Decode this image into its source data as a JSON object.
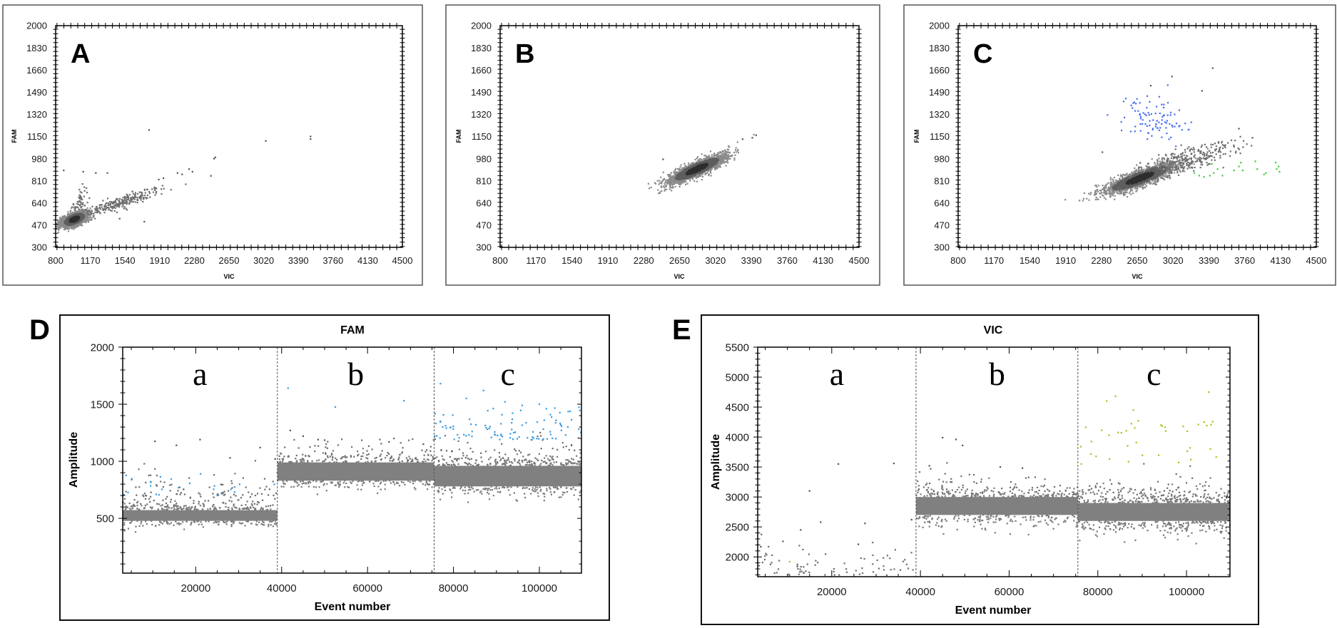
{
  "colors": {
    "gray": "#808080",
    "dark_gray": "#5e5e5e",
    "darkest_gray": "#2e2e2e",
    "light_gray": "#8a8a8a",
    "blue_fam": "#4a6ff0",
    "green_vic": "#3ccc3c",
    "blue_d": "#3a9be0",
    "green_e": "#9bc81e"
  },
  "chart_data": [
    {
      "panel": "A",
      "type": "scatter",
      "xlabel": "VIC",
      "ylabel": "FAM",
      "xlim": [
        800,
        4500
      ],
      "ylim": [
        300,
        2000
      ],
      "xticks": [
        800,
        1170,
        1540,
        1910,
        2280,
        2650,
        3020,
        3390,
        3760,
        4130,
        4500
      ],
      "yticks": [
        300,
        470,
        640,
        810,
        980,
        1150,
        1320,
        1490,
        1660,
        1830,
        2000
      ],
      "clusters": [
        {
          "name": "double-negative",
          "center": [
            1000,
            515
          ],
          "sd": [
            70,
            30
          ],
          "rho": 0.55,
          "n": 1800,
          "shade": true
        },
        {
          "name": "tail",
          "center": [
            1480,
            640
          ],
          "sd": [
            230,
            60
          ],
          "rho": 0.92,
          "n": 260,
          "shade": false
        },
        {
          "name": "spur",
          "center": [
            1070,
            640
          ],
          "sd": [
            40,
            60
          ],
          "rho": 0.3,
          "n": 60,
          "shade": false
        }
      ],
      "points": [
        [
          1797,
          1200
        ],
        [
          3043,
          1116
        ],
        [
          3520,
          1150
        ],
        [
          3520,
          1130
        ],
        [
          2503,
          990
        ],
        [
          2490,
          980
        ],
        [
          886,
          890
        ],
        [
          1095,
          880
        ],
        [
          1229,
          870
        ],
        [
          1353,
          870
        ],
        [
          2457,
          848
        ],
        [
          1746,
          497
        ],
        [
          1483,
          520
        ],
        [
          2224,
          900
        ],
        [
          2260,
          880
        ],
        [
          2150,
          860
        ],
        [
          2100,
          870
        ],
        [
          1950,
          830
        ],
        [
          1900,
          820
        ]
      ]
    },
    {
      "panel": "B",
      "type": "scatter",
      "xlabel": "VIC",
      "ylabel": "FAM",
      "xlim": [
        800,
        4500
      ],
      "ylim": [
        300,
        2000
      ],
      "xticks": [
        800,
        1170,
        1540,
        1910,
        2280,
        2650,
        3020,
        3390,
        3760,
        4130,
        4500
      ],
      "yticks": [
        300,
        470,
        640,
        810,
        980,
        1150,
        1320,
        1490,
        1660,
        1830,
        2000
      ],
      "clusters": [
        {
          "name": "double-negative",
          "center": [
            2830,
            900
          ],
          "sd": [
            150,
            55
          ],
          "rho": 0.85,
          "n": 1900,
          "shade": true
        }
      ],
      "points": [
        [
          3440,
          1160
        ],
        [
          3400,
          1140
        ],
        [
          2480,
          975
        ],
        [
          3300,
          1130
        ]
      ]
    },
    {
      "panel": "C",
      "type": "scatter",
      "xlabel": "VIC",
      "ylabel": "FAM",
      "xlim": [
        800,
        4500
      ],
      "ylim": [
        300,
        2000
      ],
      "xticks": [
        800,
        1170,
        1540,
        1910,
        2280,
        2650,
        3020,
        3390,
        3760,
        4130,
        4500
      ],
      "yticks": [
        300,
        470,
        640,
        810,
        980,
        1150,
        1320,
        1490,
        1660,
        1830,
        2000
      ],
      "clusters": [
        {
          "name": "double-negative",
          "center": [
            2680,
            830
          ],
          "sd": [
            190,
            60
          ],
          "rho": 0.85,
          "n": 1800,
          "shade": true
        },
        {
          "name": "tail",
          "center": [
            3150,
            960
          ],
          "sd": [
            260,
            75
          ],
          "rho": 0.8,
          "n": 320,
          "shade": false
        },
        {
          "name": "fam-positive",
          "center": [
            2800,
            1290
          ],
          "sd": [
            170,
            85
          ],
          "rho": 0.0,
          "n": 95,
          "shade": false,
          "color_key": "blue_fam"
        }
      ],
      "points": [
        [
          3430,
          1674
        ],
        [
          3010,
          1610
        ],
        [
          2790,
          1540
        ],
        [
          3320,
          1500
        ],
        [
          2290,
          1030
        ],
        [
          3840,
          1140
        ],
        [
          3700,
          1210
        ]
      ],
      "green_points": [
        [
          3240,
          870
        ],
        [
          3290,
          850
        ],
        [
          3340,
          840
        ],
        [
          3400,
          850
        ],
        [
          3440,
          870
        ],
        [
          3480,
          900
        ],
        [
          3420,
          940
        ],
        [
          3530,
          850
        ],
        [
          3650,
          890
        ],
        [
          3700,
          920
        ],
        [
          3720,
          950
        ],
        [
          3740,
          890
        ],
        [
          3870,
          960
        ],
        [
          3890,
          900
        ],
        [
          3960,
          860
        ],
        [
          3980,
          870
        ],
        [
          4080,
          950
        ],
        [
          4090,
          900
        ],
        [
          4110,
          920
        ],
        [
          4120,
          880
        ]
      ]
    },
    {
      "panel": "D",
      "type": "scatter",
      "title": "FAM",
      "xlabel": "Event number",
      "ylabel": "Amplitude",
      "xlim": [
        3000,
        109800
      ],
      "ylim": [
        20,
        2000
      ],
      "xticks": [
        20000,
        40000,
        60000,
        80000,
        100000
      ],
      "yticks": [
        500,
        1000,
        1500,
        2000
      ],
      "segments": [
        {
          "label": "a",
          "x_range": [
            3000,
            39000
          ],
          "band": {
            "center": 520,
            "core": [
              478,
              572
            ],
            "sd": 32,
            "n": 700
          },
          "tail": {
            "n": 200,
            "from": 575,
            "scale": 110
          },
          "positive": {
            "color_key": "blue_d",
            "n": 24,
            "y_range": [
              700,
              900
            ]
          },
          "outliers": [
            [
              10500,
              1175
            ],
            [
              15500,
              1140
            ],
            [
              21000,
              1190
            ],
            [
              28000,
              1030
            ],
            [
              35000,
              1120
            ],
            [
              38500,
              1020
            ]
          ]
        },
        {
          "label": "b",
          "x_range": [
            39000,
            75500
          ],
          "band": {
            "center": 905,
            "core": [
              830,
              990
            ],
            "sd": 48,
            "n": 900
          },
          "tail": {
            "n": 120,
            "from": 990,
            "scale": 60
          },
          "positive": {
            "color_key": "blue_d",
            "n": 0,
            "y_range": [
              1400,
              1650
            ]
          },
          "outliers": [
            [
              42000,
              1270
            ],
            [
              45000,
              1220
            ],
            [
              48500,
              1190
            ],
            [
              50000,
              1185
            ],
            [
              65000,
              1170
            ],
            [
              73000,
              1150
            ]
          ],
          "positive_points": [
            [
              41500,
              1640
            ],
            [
              52500,
              1475
            ],
            [
              68500,
              1530
            ]
          ]
        },
        {
          "label": "c",
          "x_range": [
            75500,
            109800
          ],
          "band": {
            "center": 860,
            "core": [
              780,
              960
            ],
            "sd": 60,
            "n": 900
          },
          "tail": {
            "n": 140,
            "from": 960,
            "scale": 80
          },
          "positive": {
            "color_key": "blue_d",
            "n": 95,
            "y_range": [
              1190,
              1480
            ]
          },
          "outliers": [],
          "positive_points": [
            [
              77000,
              1680
            ],
            [
              87000,
              1620
            ],
            [
              83000,
              1550
            ],
            [
              100000,
              1500
            ],
            [
              92000,
              1520
            ],
            [
              96000,
              1490
            ]
          ]
        }
      ]
    },
    {
      "panel": "E",
      "type": "scatter",
      "title": "VIC",
      "xlabel": "Event number",
      "ylabel": "Amplitude",
      "xlim": [
        3300,
        109800
      ],
      "ylim": [
        1670,
        5500
      ],
      "xticks": [
        20000,
        40000,
        60000,
        80000,
        100000
      ],
      "yticks": [
        2000,
        2500,
        3000,
        3500,
        4000,
        4500,
        5000,
        5500
      ],
      "segments": [
        {
          "label": "a",
          "x_range": [
            3300,
            39000
          ],
          "band": null,
          "tail": {
            "n": 75,
            "from": 1690,
            "scale": 220
          },
          "positive": {
            "color_key": "green_e",
            "n": 0,
            "y_range": [
              1900,
              1950
            ]
          },
          "outliers": [
            [
              21500,
              3550
            ],
            [
              34000,
              3560
            ],
            [
              15000,
              3100
            ],
            [
              13000,
              2450
            ],
            [
              17500,
              2580
            ],
            [
              27500,
              2560
            ],
            [
              9000,
              2260
            ],
            [
              4000,
              2170
            ],
            [
              26000,
              2210
            ],
            [
              38000,
              2620
            ]
          ],
          "positive_points": [
            [
              10500,
              1920
            ]
          ]
        },
        {
          "label": "b",
          "x_range": [
            39000,
            75500
          ],
          "band": {
            "center": 2830,
            "core": [
              2700,
              3000
            ],
            "sd": 110,
            "n": 900
          },
          "tail": {
            "n": 110,
            "from": 3000,
            "scale": 150
          },
          "positive": {
            "color_key": "green_e",
            "n": 0,
            "y_range": [
              3600,
              4000
            ]
          },
          "outliers": [
            [
              45000,
              3990
            ],
            [
              48000,
              3960
            ],
            [
              49500,
              3860
            ],
            [
              42000,
              3520
            ],
            [
              58000,
              3500
            ],
            [
              63000,
              3480
            ]
          ]
        },
        {
          "label": "c",
          "x_range": [
            75500,
            109800
          ],
          "band": {
            "center": 2740,
            "core": [
              2600,
              2900
            ],
            "sd": 130,
            "n": 900
          },
          "tail": {
            "n": 120,
            "from": 2900,
            "scale": 170
          },
          "positive": {
            "color_key": "green_e",
            "n": 36,
            "y_range": [
              3550,
              4300
            ]
          },
          "outliers": [],
          "positive_points": [
            [
              84000,
              4680
            ],
            [
              105000,
              4750
            ],
            [
              82000,
              4600
            ],
            [
              88000,
              4450
            ],
            [
              104000,
              4250
            ]
          ]
        }
      ]
    }
  ]
}
